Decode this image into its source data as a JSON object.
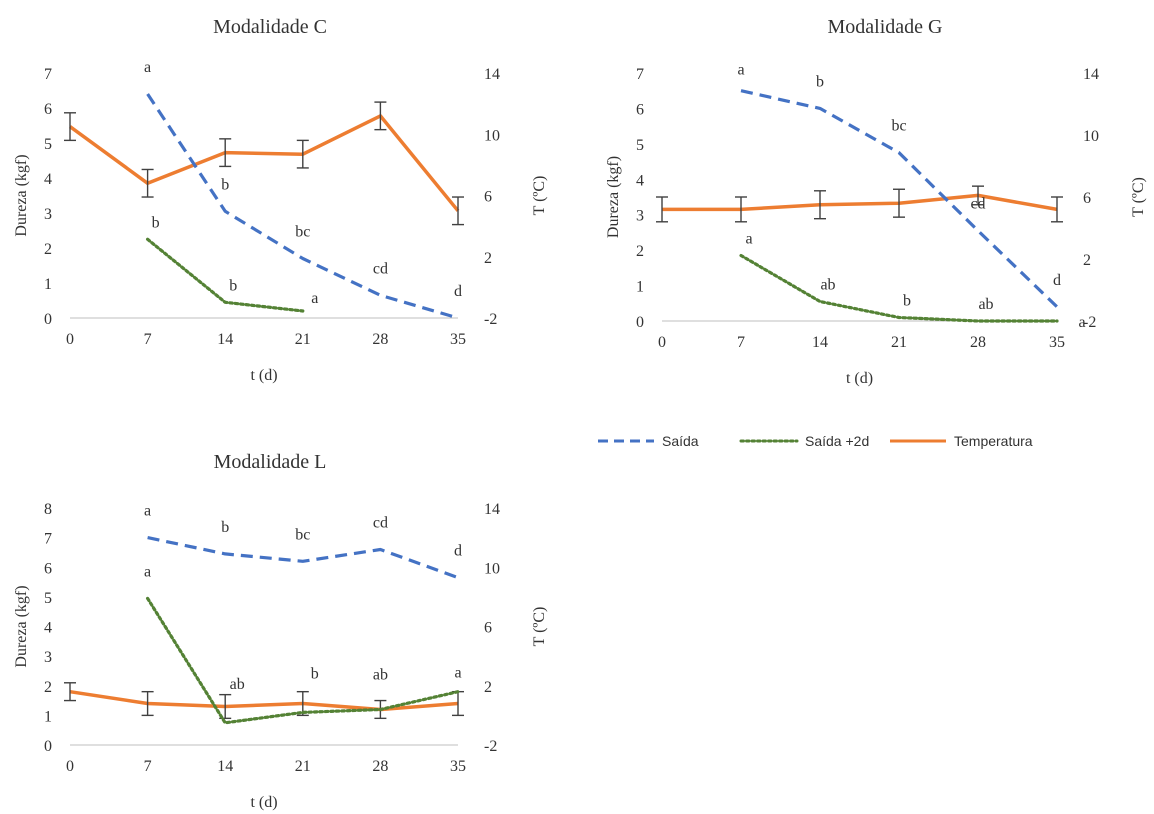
{
  "legend": {
    "items": [
      {
        "key": "saida",
        "label": "Saída"
      },
      {
        "key": "saida2d",
        "label": "Saída +2d"
      },
      {
        "key": "temp",
        "label": "Temperatura"
      }
    ]
  },
  "styles": {
    "saida": {
      "color": "#4472C4",
      "dash": "dash"
    },
    "saida2d": {
      "color": "#548235",
      "dash": "dot"
    },
    "temp": {
      "color": "#ED7D31",
      "dash": "solid"
    },
    "errorbar_color": "#404040",
    "axis_color": "#7f7f7f"
  },
  "chart_data": [
    {
      "type": "line",
      "title": "Modalidade C",
      "xlabel": "t (d)",
      "ylabel": "Dureza (kgf)",
      "y2label": "T (ºC)",
      "x": [
        0,
        7,
        14,
        21,
        28,
        35
      ],
      "xlim": [
        0,
        35
      ],
      "ylim": [
        0,
        7
      ],
      "y_ticks": [
        0,
        1,
        2,
        3,
        4,
        5,
        6,
        7
      ],
      "y2lim": [
        -2,
        14
      ],
      "y2_ticks": [
        -2,
        2,
        6,
        10,
        14
      ],
      "grid": false,
      "series": [
        {
          "key": "saida",
          "name": "Saída",
          "axis": "left",
          "x": [
            7,
            14,
            21,
            28,
            35
          ],
          "values": [
            6.4,
            3.05,
            1.7,
            0.65,
            0
          ],
          "labels": [
            "a",
            "b",
            "bc",
            "cd",
            "d"
          ]
        },
        {
          "key": "saida2d",
          "name": "Saída +2d",
          "axis": "left",
          "x": [
            7,
            14,
            21
          ],
          "values": [
            2.25,
            0.45,
            0.2
          ],
          "labels": [
            "b",
            "b",
            "a"
          ]
        },
        {
          "key": "temp",
          "name": "Temperatura",
          "axis": "right",
          "x": [
            0,
            7,
            14,
            21,
            28,
            35
          ],
          "values": [
            10.5,
            6.8,
            8.8,
            8.7,
            11.2,
            5.0
          ],
          "errors": [
            0.9,
            0.9,
            0.9,
            0.9,
            0.9,
            0.9
          ]
        }
      ]
    },
    {
      "type": "line",
      "title": "Modalidade G",
      "xlabel": "t (d)",
      "ylabel": "Dureza (kgf)",
      "y2label": "T (ºC)",
      "x": [
        0,
        7,
        14,
        21,
        28,
        35
      ],
      "xlim": [
        0,
        35
      ],
      "ylim": [
        0,
        7
      ],
      "y_ticks": [
        0,
        1,
        2,
        3,
        4,
        5,
        6,
        7
      ],
      "y2lim": [
        -2,
        14
      ],
      "y2_ticks": [
        -2,
        2,
        6,
        10,
        14
      ],
      "grid": false,
      "series": [
        {
          "key": "saida",
          "name": "Saída",
          "axis": "left",
          "x": [
            7,
            14,
            21,
            28,
            35
          ],
          "values": [
            6.5,
            6.0,
            4.75,
            2.55,
            0.4
          ],
          "labels": [
            "a",
            "b",
            "bc",
            "cd",
            "d"
          ]
        },
        {
          "key": "saida2d",
          "name": "Saída +2d",
          "axis": "left",
          "x": [
            7,
            14,
            21,
            28,
            35
          ],
          "values": [
            1.85,
            0.55,
            0.1,
            0.0,
            0.0
          ],
          "labels": [
            "a",
            "ab",
            "b",
            "ab",
            "a"
          ]
        },
        {
          "key": "temp",
          "name": "Temperatura",
          "axis": "right",
          "x": [
            0,
            7,
            14,
            21,
            28,
            35
          ],
          "values": [
            5.2,
            5.2,
            5.5,
            5.6,
            6.1,
            5.2
          ],
          "errors": [
            0.8,
            0.8,
            0.9,
            0.9,
            0.6,
            0.8
          ]
        }
      ]
    },
    {
      "type": "line",
      "title": "Modalidade L",
      "xlabel": "t (d)",
      "ylabel": "Dureza (kgf)",
      "y2label": "T (ºC)",
      "x": [
        0,
        7,
        14,
        21,
        28,
        35
      ],
      "xlim": [
        0,
        35
      ],
      "ylim": [
        0,
        8
      ],
      "y_ticks": [
        0,
        1,
        2,
        3,
        4,
        5,
        6,
        7,
        8
      ],
      "y2lim": [
        -2,
        14
      ],
      "y2_ticks": [
        -2,
        2,
        6,
        10,
        14
      ],
      "grid": false,
      "series": [
        {
          "key": "saida",
          "name": "Saída",
          "axis": "left",
          "x": [
            7,
            14,
            21,
            28,
            35
          ],
          "values": [
            7.0,
            6.45,
            6.2,
            6.6,
            5.65
          ],
          "labels": [
            "a",
            "b",
            "bc",
            "cd",
            "d"
          ]
        },
        {
          "key": "saida2d",
          "name": "Saída +2d",
          "axis": "left",
          "x": [
            7,
            14,
            21,
            28,
            35
          ],
          "values": [
            4.95,
            0.75,
            1.1,
            1.2,
            1.8
          ],
          "labels": [
            "a",
            "ab",
            "b",
            "ab",
            "a"
          ]
        },
        {
          "key": "temp",
          "name": "Temperatura",
          "axis": "right",
          "x": [
            0,
            7,
            14,
            21,
            28,
            35
          ],
          "values": [
            1.6,
            0.8,
            0.6,
            0.8,
            0.4,
            0.8
          ],
          "errors": [
            0.6,
            0.8,
            0.8,
            0.8,
            0.6,
            0.8
          ]
        }
      ]
    }
  ]
}
